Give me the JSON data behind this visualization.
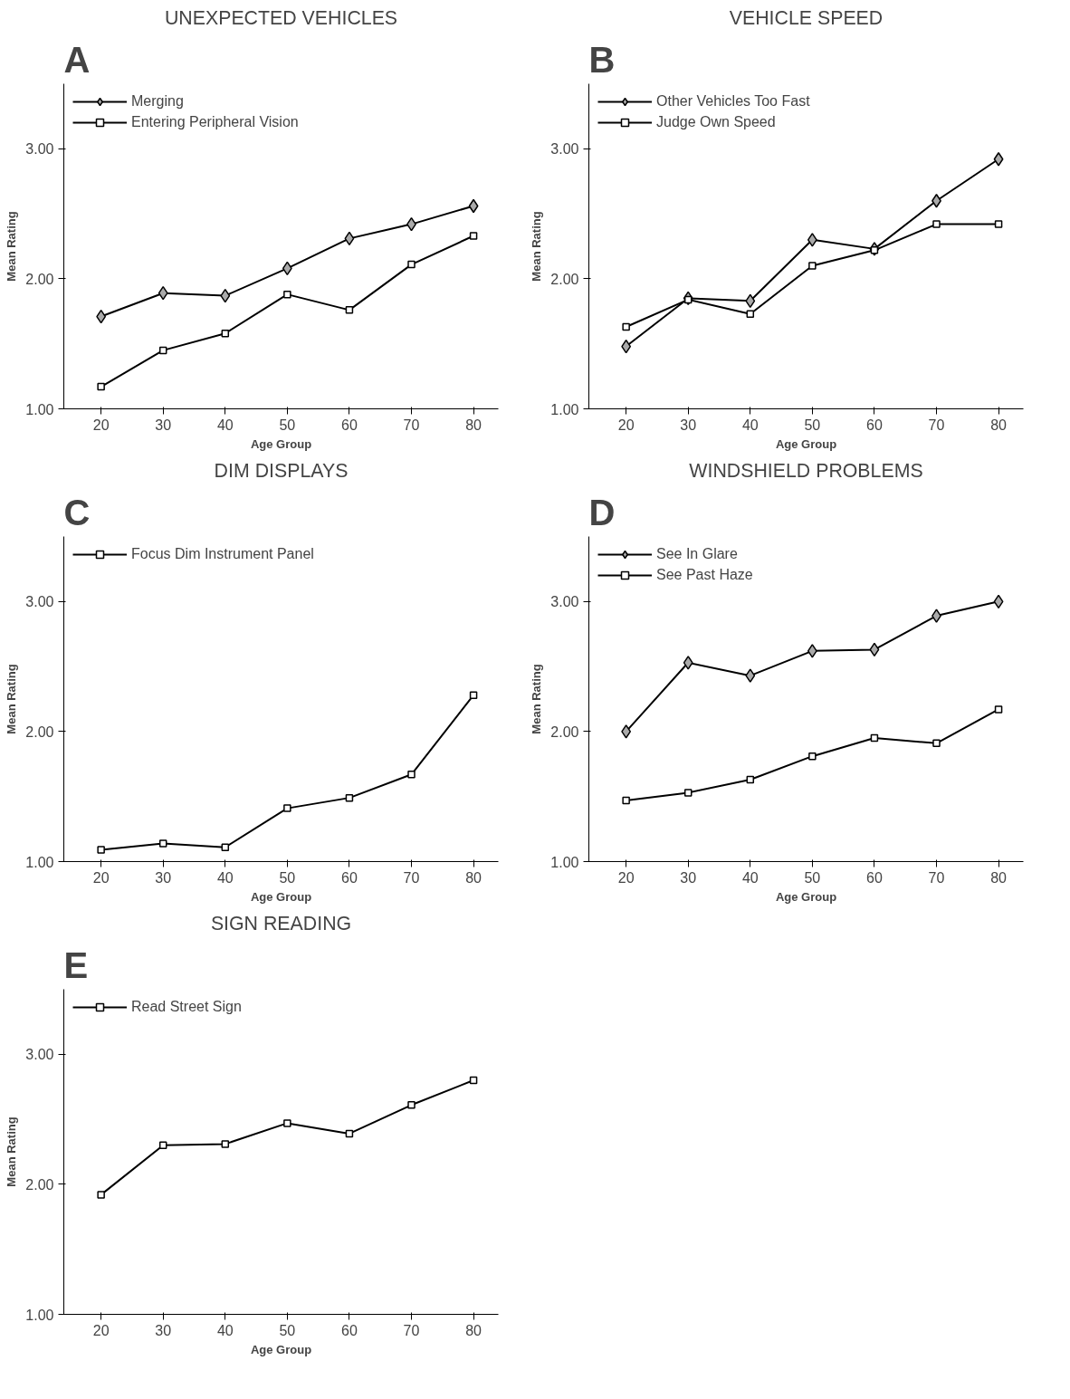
{
  "chart_data": [
    {
      "type": "line",
      "title": "UNEXPECTED VEHICLES",
      "annotations": [
        "A"
      ],
      "xlabel": "Age Group",
      "ylabel": "Mean Rating",
      "x": [
        20,
        30,
        40,
        50,
        60,
        70,
        80
      ],
      "xlim": [
        14,
        84
      ],
      "xticks": [
        20,
        30,
        40,
        50,
        60,
        70,
        80
      ],
      "ylim": [
        1,
        3.5
      ],
      "yticks": [
        {
          "value": 1,
          "label": "1.00"
        },
        {
          "value": 2,
          "label": "2.00"
        },
        {
          "value": 3,
          "label": "3.00"
        }
      ],
      "grid": false,
      "legend": "top left",
      "series": [
        {
          "name": "Merging",
          "color": "#000000",
          "marker": "diamond",
          "values": [
            1.71,
            1.89,
            1.87,
            2.08,
            2.31,
            2.42,
            2.56
          ]
        },
        {
          "name": "Entering Peripheral Vision",
          "color": "#000000",
          "marker": "square",
          "values": [
            1.17,
            1.45,
            1.58,
            1.88,
            1.76,
            2.11,
            2.33
          ]
        }
      ]
    },
    {
      "type": "line",
      "title": "VEHICLE SPEED",
      "annotations": [
        "B"
      ],
      "xlabel": "Age Group",
      "ylabel": "Mean Rating",
      "x": [
        20,
        30,
        40,
        50,
        60,
        70,
        80
      ],
      "xlim": [
        14,
        84
      ],
      "xticks": [
        20,
        30,
        40,
        50,
        60,
        70,
        80
      ],
      "ylim": [
        1,
        3.5
      ],
      "yticks": [
        {
          "value": 1,
          "label": "1.00"
        },
        {
          "value": 2,
          "label": "2.00"
        },
        {
          "value": 3,
          "label": "3.00"
        }
      ],
      "grid": false,
      "legend": "top left",
      "series": [
        {
          "name": "Other Vehicles Too Fast",
          "color": "#000000",
          "marker": "diamond",
          "values": [
            1.48,
            1.85,
            1.83,
            2.3,
            2.23,
            2.6,
            2.92
          ]
        },
        {
          "name": "Judge Own Speed",
          "color": "#000000",
          "marker": "square",
          "values": [
            1.63,
            1.84,
            1.73,
            2.1,
            2.22,
            2.42,
            2.42
          ]
        }
      ]
    },
    {
      "type": "line",
      "title": "DIM DISPLAYS",
      "annotations": [
        "C"
      ],
      "xlabel": "Age Group",
      "ylabel": "Mean Rating",
      "x": [
        20,
        30,
        40,
        50,
        60,
        70,
        80
      ],
      "xlim": [
        14,
        84
      ],
      "xticks": [
        20,
        30,
        40,
        50,
        60,
        70,
        80
      ],
      "ylim": [
        1,
        3.5
      ],
      "yticks": [
        {
          "value": 1,
          "label": "1.00"
        },
        {
          "value": 2,
          "label": "2.00"
        },
        {
          "value": 3,
          "label": "3.00"
        }
      ],
      "grid": false,
      "legend": "top left",
      "series": [
        {
          "name": "Focus Dim Instrument Panel",
          "color": "#000000",
          "marker": "square",
          "values": [
            1.09,
            1.14,
            1.11,
            1.41,
            1.49,
            1.67,
            2.28
          ]
        }
      ]
    },
    {
      "type": "line",
      "title": "WINDSHIELD PROBLEMS",
      "annotations": [
        "D"
      ],
      "xlabel": "Age Group",
      "ylabel": "Mean Rating",
      "x": [
        20,
        30,
        40,
        50,
        60,
        70,
        80
      ],
      "xlim": [
        14,
        84
      ],
      "xticks": [
        20,
        30,
        40,
        50,
        60,
        70,
        80
      ],
      "ylim": [
        1,
        3.5
      ],
      "yticks": [
        {
          "value": 1,
          "label": "1.00"
        },
        {
          "value": 2,
          "label": "2.00"
        },
        {
          "value": 3,
          "label": "3.00"
        }
      ],
      "grid": false,
      "legend": "top left",
      "series": [
        {
          "name": "See In Glare",
          "color": "#000000",
          "marker": "diamond",
          "values": [
            2.0,
            2.53,
            2.43,
            2.62,
            2.63,
            2.89,
            3.0
          ]
        },
        {
          "name": "See Past Haze",
          "color": "#000000",
          "marker": "square",
          "values": [
            1.47,
            1.53,
            1.63,
            1.81,
            1.95,
            1.91,
            2.17
          ]
        }
      ]
    },
    {
      "type": "line",
      "title": "SIGN READING",
      "annotations": [
        "E"
      ],
      "xlabel": "Age Group",
      "ylabel": "Mean Rating",
      "x": [
        20,
        30,
        40,
        50,
        60,
        70,
        80
      ],
      "xlim": [
        14,
        84
      ],
      "xticks": [
        20,
        30,
        40,
        50,
        60,
        70,
        80
      ],
      "ylim": [
        1,
        3.5
      ],
      "yticks": [
        {
          "value": 1,
          "label": "1.00"
        },
        {
          "value": 2,
          "label": "2.00"
        },
        {
          "value": 3,
          "label": "3.00"
        }
      ],
      "grid": false,
      "legend": "top left",
      "series": [
        {
          "name": "Read Street Sign",
          "color": "#000000",
          "marker": "square",
          "values": [
            1.92,
            2.3,
            2.31,
            2.47,
            2.39,
            2.61,
            2.8
          ]
        }
      ]
    }
  ]
}
